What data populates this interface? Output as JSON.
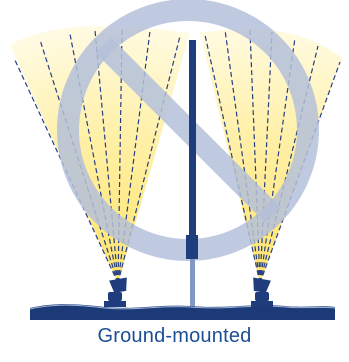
{
  "caption": "Ground-mounted",
  "colors": {
    "background": "#ffffff",
    "light_glow": "#ffe36a",
    "light_fade": "#ffffff",
    "beam_lines": "#243f85",
    "prohibition_symbol": "#b4c0d9",
    "pole": "#1f3d7c",
    "ground": "#1d3a78",
    "caption": "#1a4f96"
  },
  "icons": {
    "prohibition": "prohibition-sign-icon",
    "fixture": "floodlight-icon",
    "pole": "lighting-pole-icon"
  }
}
